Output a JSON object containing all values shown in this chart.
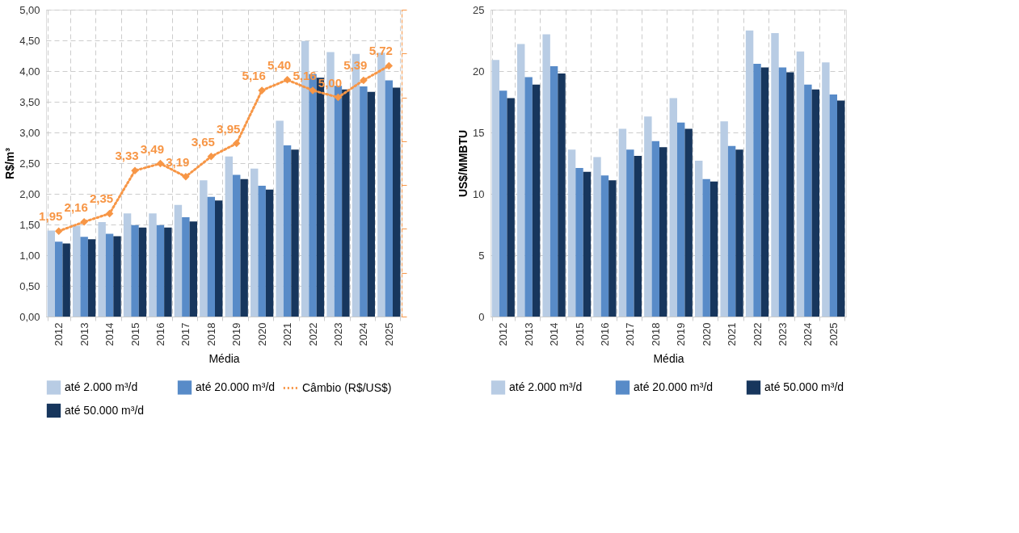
{
  "chart_data": [
    {
      "type": "bar",
      "xlabel": "Média",
      "ylabel": "R$/m³",
      "categories": [
        "2012",
        "2013",
        "2014",
        "2015",
        "2016",
        "2017",
        "2018",
        "2019",
        "2020",
        "2021",
        "2022",
        "2023",
        "2024",
        "2025"
      ],
      "ylim": [
        0,
        5
      ],
      "yticks": [
        {
          "value": 0,
          "label": "0,00"
        },
        {
          "value": 0.5,
          "label": "0,50"
        },
        {
          "value": 1,
          "label": "1,00"
        },
        {
          "value": 1.5,
          "label": "1,50"
        },
        {
          "value": 2,
          "label": "2,00"
        },
        {
          "value": 2.5,
          "label": "2,50"
        },
        {
          "value": 3,
          "label": "3,00"
        },
        {
          "value": 3.5,
          "label": "3,50"
        },
        {
          "value": 4,
          "label": "4,00"
        },
        {
          "value": 4.5,
          "label": "4,50"
        },
        {
          "value": 5,
          "label": "5,00"
        }
      ],
      "y2lim": [
        0,
        7
      ],
      "y2ticks": [
        {
          "value": 0,
          "label": null
        },
        {
          "value": 1,
          "label": null
        },
        {
          "value": 2,
          "label": null
        },
        {
          "value": 3,
          "label": null
        },
        {
          "value": 4,
          "label": null
        },
        {
          "value": 5,
          "label": null
        },
        {
          "value": 6,
          "label": null
        },
        {
          "value": 7,
          "label": null
        }
      ],
      "grid": true,
      "legend": "bottom",
      "marker": "diamond",
      "line_style": "dotted",
      "series": [
        {
          "name": "até 2.000 m³/d",
          "color": "#b8cce4",
          "values": [
            1.4,
            1.48,
            1.54,
            1.68,
            1.68,
            1.82,
            2.22,
            2.61,
            2.41,
            3.19,
            4.49,
            4.31,
            4.28,
            4.3
          ]
        },
        {
          "name": "até 20.000 m³/d",
          "color": "#588bc8",
          "values": [
            1.22,
            1.3,
            1.35,
            1.49,
            1.49,
            1.62,
            1.95,
            2.31,
            2.13,
            2.79,
            3.95,
            3.76,
            3.75,
            3.85
          ]
        },
        {
          "name": "até 50.000 m³/d",
          "color": "#17365d",
          "values": [
            1.19,
            1.26,
            1.31,
            1.45,
            1.45,
            1.55,
            1.89,
            2.24,
            2.07,
            2.72,
            3.89,
            3.7,
            3.66,
            3.73
          ]
        },
        {
          "name": "Câmbio (R$/US$)",
          "type": "line",
          "axis": "y2",
          "color": "#f79646",
          "values": [
            1.95,
            2.16,
            2.35,
            3.33,
            3.49,
            3.19,
            3.65,
            3.95,
            5.16,
            5.4,
            5.16,
            5.0,
            5.39,
            5.72
          ],
          "value_labels": [
            "1,95",
            "2,16",
            "2,35",
            "3,33",
            "3,49",
            "3,19",
            "3,65",
            "3,95",
            "5,16",
            "5,40",
            "5,16",
            "5,00",
            "5,39",
            "5,72"
          ]
        }
      ]
    },
    {
      "type": "bar",
      "xlabel": "Média",
      "ylabel": "US$/MMBTU",
      "categories": [
        "2012",
        "2013",
        "2014",
        "2015",
        "2016",
        "2017",
        "2018",
        "2019",
        "2020",
        "2021",
        "2022",
        "2023",
        "2024",
        "2025"
      ],
      "ylim": [
        0,
        25
      ],
      "yticks": [
        0,
        5,
        10,
        15,
        20,
        25
      ],
      "grid": true,
      "legend": "bottom",
      "series": [
        {
          "name": "até 2.000 m³/d",
          "color": "#b8cce4",
          "values": [
            20.9,
            22.2,
            23.0,
            13.6,
            13.0,
            15.3,
            16.3,
            17.8,
            12.7,
            15.9,
            23.3,
            23.1,
            21.6,
            20.7
          ]
        },
        {
          "name": "até 20.000 m³/d",
          "color": "#588bc8",
          "values": [
            18.4,
            19.5,
            20.4,
            12.1,
            11.5,
            13.6,
            14.3,
            15.8,
            11.2,
            13.9,
            20.6,
            20.3,
            18.9,
            18.1
          ]
        },
        {
          "name": "até 50.000 m³/d",
          "color": "#17365d",
          "values": [
            17.8,
            18.9,
            19.8,
            11.8,
            11.1,
            13.1,
            13.8,
            15.3,
            11.0,
            13.6,
            20.3,
            19.9,
            18.5,
            17.6
          ]
        }
      ]
    }
  ]
}
